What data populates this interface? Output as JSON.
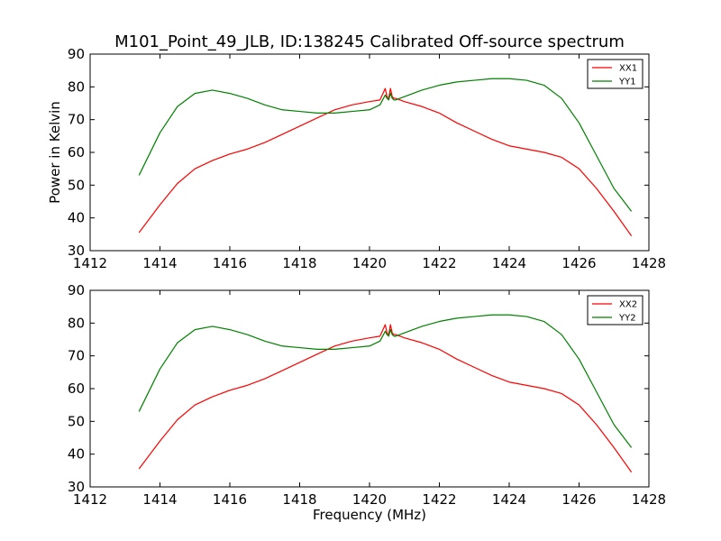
{
  "chart_data": [
    {
      "type": "line",
      "title": "M101_Point_49_JLB, ID:138245 Calibrated Off-source spectrum",
      "xlabel": "",
      "ylabel": "Power in Kelvin",
      "xlim": [
        1412,
        1428
      ],
      "ylim": [
        30,
        90
      ],
      "xticks": [
        1412,
        1414,
        1416,
        1418,
        1420,
        1422,
        1424,
        1426,
        1428
      ],
      "yticks": [
        30,
        40,
        50,
        60,
        70,
        80,
        90
      ],
      "grid": false,
      "legend_position": "top-right",
      "series": [
        {
          "name": "XX1",
          "color": "#ff0000",
          "x": [
            1413.4,
            1414.0,
            1414.5,
            1415.0,
            1415.5,
            1416.0,
            1416.5,
            1417.0,
            1417.5,
            1418.0,
            1418.5,
            1419.0,
            1419.5,
            1420.0,
            1420.3,
            1420.45,
            1420.5,
            1420.55,
            1420.6,
            1420.65,
            1420.7,
            1420.75,
            1421.0,
            1421.5,
            1422.0,
            1422.5,
            1423.0,
            1423.5,
            1424.0,
            1424.5,
            1425.0,
            1425.5,
            1426.0,
            1426.5,
            1427.0,
            1427.5
          ],
          "y": [
            35.5,
            44,
            50.5,
            55,
            57.5,
            59.5,
            61,
            63,
            65.5,
            68,
            70.5,
            73,
            74.5,
            75.5,
            76,
            79.5,
            77,
            76.5,
            79.5,
            77,
            76.5,
            76.5,
            75.5,
            74,
            72,
            69,
            66.5,
            64,
            62,
            61,
            60,
            58.5,
            55,
            49,
            42,
            34.5
          ]
        },
        {
          "name": "YY1",
          "color": "#008000",
          "x": [
            1413.4,
            1414.0,
            1414.5,
            1415.0,
            1415.5,
            1416.0,
            1416.5,
            1417.0,
            1417.5,
            1418.0,
            1418.5,
            1419.0,
            1419.5,
            1420.0,
            1420.3,
            1420.45,
            1420.5,
            1420.55,
            1420.6,
            1420.65,
            1420.7,
            1420.75,
            1421.0,
            1421.5,
            1422.0,
            1422.5,
            1423.0,
            1423.5,
            1424.0,
            1424.5,
            1425.0,
            1425.5,
            1426.0,
            1426.5,
            1427.0,
            1427.5
          ],
          "y": [
            53,
            66,
            74,
            78,
            79,
            78,
            76.5,
            74.5,
            73,
            72.5,
            72,
            72,
            72.5,
            73,
            74.5,
            77.5,
            76.5,
            76,
            78,
            76.5,
            76,
            76,
            77,
            79,
            80.5,
            81.5,
            82,
            82.5,
            82.5,
            82,
            80.5,
            76.5,
            69,
            59,
            49,
            42
          ]
        }
      ]
    },
    {
      "type": "line",
      "title": "",
      "xlabel": "Frequency (MHz)",
      "ylabel": "",
      "xlim": [
        1412,
        1428
      ],
      "ylim": [
        30,
        90
      ],
      "xticks": [
        1412,
        1414,
        1416,
        1418,
        1420,
        1422,
        1424,
        1426,
        1428
      ],
      "yticks": [
        30,
        40,
        50,
        60,
        70,
        80,
        90
      ],
      "grid": false,
      "legend_position": "top-right",
      "series": [
        {
          "name": "XX2",
          "color": "#ff0000",
          "x": [
            1413.4,
            1414.0,
            1414.5,
            1415.0,
            1415.5,
            1416.0,
            1416.5,
            1417.0,
            1417.5,
            1418.0,
            1418.5,
            1419.0,
            1419.5,
            1420.0,
            1420.3,
            1420.45,
            1420.5,
            1420.55,
            1420.6,
            1420.65,
            1420.7,
            1420.75,
            1421.0,
            1421.5,
            1422.0,
            1422.5,
            1423.0,
            1423.5,
            1424.0,
            1424.5,
            1425.0,
            1425.5,
            1426.0,
            1426.5,
            1427.0,
            1427.5
          ],
          "y": [
            35.5,
            44,
            50.5,
            55,
            57.5,
            59.5,
            61,
            63,
            65.5,
            68,
            70.5,
            73,
            74.5,
            75.5,
            76,
            79.5,
            77,
            76.5,
            79.5,
            77,
            76.5,
            76.5,
            75.5,
            74,
            72,
            69,
            66.5,
            64,
            62,
            61,
            60,
            58.5,
            55,
            49,
            42,
            34.5
          ]
        },
        {
          "name": "YY2",
          "color": "#008000",
          "x": [
            1413.4,
            1414.0,
            1414.5,
            1415.0,
            1415.5,
            1416.0,
            1416.5,
            1417.0,
            1417.5,
            1418.0,
            1418.5,
            1419.0,
            1419.5,
            1420.0,
            1420.3,
            1420.45,
            1420.5,
            1420.55,
            1420.6,
            1420.65,
            1420.7,
            1420.75,
            1421.0,
            1421.5,
            1422.0,
            1422.5,
            1423.0,
            1423.5,
            1424.0,
            1424.5,
            1425.0,
            1425.5,
            1426.0,
            1426.5,
            1427.0,
            1427.5
          ],
          "y": [
            53,
            66,
            74,
            78,
            79,
            78,
            76.5,
            74.5,
            73,
            72.5,
            72,
            72,
            72.5,
            73,
            74.5,
            77.5,
            76.5,
            76,
            78,
            76.5,
            76,
            76,
            77,
            79,
            80.5,
            81.5,
            82,
            82.5,
            82.5,
            82,
            80.5,
            76.5,
            69,
            59,
            49,
            42
          ]
        }
      ]
    }
  ]
}
